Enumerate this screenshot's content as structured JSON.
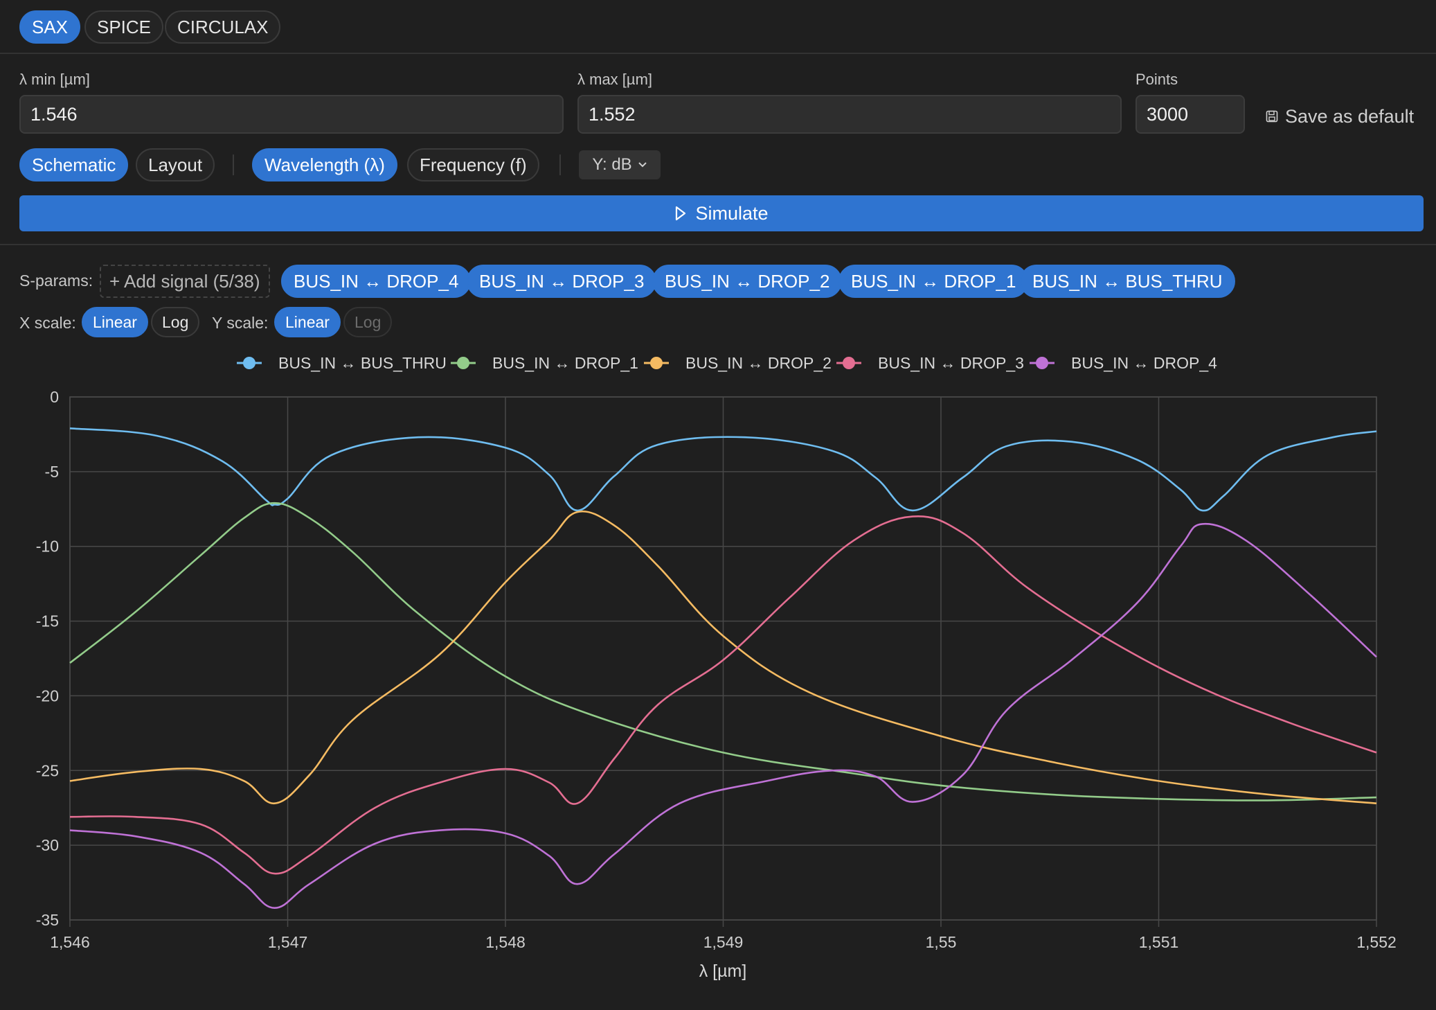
{
  "tabs": [
    {
      "label": "SAX",
      "active": true
    },
    {
      "label": "SPICE",
      "active": false
    },
    {
      "label": "CIRCULAX",
      "active": false
    }
  ],
  "sweep": {
    "lambda_min_label": "λ min [µm]",
    "lambda_min_value": "1.546",
    "lambda_max_label": "λ max [µm]",
    "lambda_max_value": "1.552",
    "points_label": "Points",
    "points_value": "3000",
    "save_default": "Save as default"
  },
  "view_toggle": {
    "schematic": "Schematic",
    "layout": "Layout",
    "active": "Schematic"
  },
  "domain_toggle": {
    "wavelength": "Wavelength (λ)",
    "frequency": "Frequency (f)",
    "active": "Wavelength (λ)"
  },
  "y_mode": "Y: dB",
  "simulate_label": "Simulate",
  "sparams": {
    "label": "S-params:",
    "add_signal": "+ Add signal (5/38)",
    "chips": [
      "BUS_IN ↔ DROP_4",
      "BUS_IN ↔ DROP_3",
      "BUS_IN ↔ DROP_2",
      "BUS_IN ↔ DROP_1",
      "BUS_IN ↔ BUS_THRU"
    ]
  },
  "scales": {
    "x_label": "X scale:",
    "y_label": "Y scale:",
    "linear": "Linear",
    "log": "Log",
    "x_active": "Linear",
    "y_active": "Linear",
    "y_log_disabled": true
  },
  "colors": {
    "accent": "#2f74d0",
    "bus_thru": "#6fbdf0",
    "drop_1": "#93cc8a",
    "drop_2": "#f5bb62",
    "drop_3": "#e46e92",
    "drop_4": "#bf72d6"
  },
  "chart_data": {
    "type": "line",
    "xlabel": "λ [µm]",
    "ylabel": "",
    "xlim": [
      1.546,
      1.552
    ],
    "ylim": [
      -35,
      0
    ],
    "x_ticks": [
      "1,546",
      "1,547",
      "1,548",
      "1,549",
      "1,55",
      "1,551",
      "1,552"
    ],
    "y_ticks": [
      "0",
      "-5",
      "-10",
      "-15",
      "-20",
      "-25",
      "-30",
      "-35"
    ],
    "grid": true,
    "legend_position": "top-center",
    "resonances": [
      1.54694,
      1.54833,
      1.54987,
      1.5512
    ],
    "series": [
      {
        "name": "BUS_IN ↔ BUS_THRU",
        "color": "#6fbdf0",
        "points": [
          [
            1.546,
            -2.1
          ],
          [
            1.5464,
            -2.6
          ],
          [
            1.5467,
            -4.3
          ],
          [
            1.5469,
            -6.9
          ],
          [
            1.54694,
            -7.2
          ],
          [
            1.547,
            -6.8
          ],
          [
            1.5472,
            -3.9
          ],
          [
            1.5476,
            -2.7
          ],
          [
            1.548,
            -3.4
          ],
          [
            1.5482,
            -5.2
          ],
          [
            1.54833,
            -7.6
          ],
          [
            1.5485,
            -5.3
          ],
          [
            1.5487,
            -3.2
          ],
          [
            1.5491,
            -2.7
          ],
          [
            1.5495,
            -3.6
          ],
          [
            1.5497,
            -5.4
          ],
          [
            1.54987,
            -7.6
          ],
          [
            1.5501,
            -5.4
          ],
          [
            1.5503,
            -3.3
          ],
          [
            1.5506,
            -3.0
          ],
          [
            1.5509,
            -4.2
          ],
          [
            1.5511,
            -6.2
          ],
          [
            1.5512,
            -7.6
          ],
          [
            1.5513,
            -6.6
          ],
          [
            1.5515,
            -3.9
          ],
          [
            1.5518,
            -2.7
          ],
          [
            1.552,
            -2.3
          ]
        ]
      },
      {
        "name": "BUS_IN ↔ DROP_1",
        "color": "#93cc8a",
        "points": [
          [
            1.546,
            -17.8
          ],
          [
            1.5463,
            -14.4
          ],
          [
            1.5466,
            -10.6
          ],
          [
            1.5468,
            -8.1
          ],
          [
            1.54694,
            -7.1
          ],
          [
            1.5471,
            -8.1
          ],
          [
            1.5473,
            -10.4
          ],
          [
            1.5476,
            -14.5
          ],
          [
            1.548,
            -18.7
          ],
          [
            1.5484,
            -21.3
          ],
          [
            1.549,
            -23.8
          ],
          [
            1.5496,
            -25.2
          ],
          [
            1.55,
            -26.0
          ],
          [
            1.5505,
            -26.6
          ],
          [
            1.551,
            -26.9
          ],
          [
            1.5515,
            -27.0
          ],
          [
            1.552,
            -26.8
          ]
        ]
      },
      {
        "name": "BUS_IN ↔ DROP_2",
        "color": "#f5bb62",
        "points": [
          [
            1.546,
            -25.7
          ],
          [
            1.5463,
            -25.1
          ],
          [
            1.5466,
            -24.9
          ],
          [
            1.5468,
            -25.7
          ],
          [
            1.54694,
            -27.2
          ],
          [
            1.5471,
            -25.3
          ],
          [
            1.5473,
            -21.6
          ],
          [
            1.5477,
            -17.2
          ],
          [
            1.548,
            -12.4
          ],
          [
            1.5482,
            -9.6
          ],
          [
            1.54833,
            -7.7
          ],
          [
            1.5485,
            -8.6
          ],
          [
            1.5487,
            -11.3
          ],
          [
            1.549,
            -16.0
          ],
          [
            1.5494,
            -19.8
          ],
          [
            1.55,
            -22.7
          ],
          [
            1.5505,
            -24.4
          ],
          [
            1.551,
            -25.7
          ],
          [
            1.5515,
            -26.6
          ],
          [
            1.552,
            -27.2
          ]
        ]
      },
      {
        "name": "BUS_IN ↔ DROP_3",
        "color": "#e46e92",
        "points": [
          [
            1.546,
            -28.1
          ],
          [
            1.5463,
            -28.1
          ],
          [
            1.5466,
            -28.6
          ],
          [
            1.5468,
            -30.5
          ],
          [
            1.54694,
            -31.9
          ],
          [
            1.5471,
            -30.7
          ],
          [
            1.5474,
            -27.5
          ],
          [
            1.5477,
            -25.8
          ],
          [
            1.548,
            -24.9
          ],
          [
            1.5482,
            -25.8
          ],
          [
            1.54833,
            -27.2
          ],
          [
            1.5485,
            -24.2
          ],
          [
            1.5487,
            -20.6
          ],
          [
            1.549,
            -17.6
          ],
          [
            1.5493,
            -13.5
          ],
          [
            1.5496,
            -9.6
          ],
          [
            1.54987,
            -8.0
          ],
          [
            1.5501,
            -9.1
          ],
          [
            1.5504,
            -12.8
          ],
          [
            1.5508,
            -16.5
          ],
          [
            1.5512,
            -19.5
          ],
          [
            1.5516,
            -21.8
          ],
          [
            1.552,
            -23.8
          ]
        ]
      },
      {
        "name": "BUS_IN ↔ DROP_4",
        "color": "#bf72d6",
        "points": [
          [
            1.546,
            -29.0
          ],
          [
            1.5463,
            -29.4
          ],
          [
            1.5466,
            -30.5
          ],
          [
            1.5468,
            -32.6
          ],
          [
            1.54694,
            -34.2
          ],
          [
            1.5471,
            -32.6
          ],
          [
            1.5474,
            -29.9
          ],
          [
            1.5477,
            -29.0
          ],
          [
            1.548,
            -29.2
          ],
          [
            1.5482,
            -30.7
          ],
          [
            1.54833,
            -32.6
          ],
          [
            1.5485,
            -30.6
          ],
          [
            1.5488,
            -27.2
          ],
          [
            1.5492,
            -25.7
          ],
          [
            1.5495,
            -25.0
          ],
          [
            1.5497,
            -25.4
          ],
          [
            1.54987,
            -27.1
          ],
          [
            1.5501,
            -25.3
          ],
          [
            1.5503,
            -21.0
          ],
          [
            1.5506,
            -17.6
          ],
          [
            1.5509,
            -13.8
          ],
          [
            1.5511,
            -10.0
          ],
          [
            1.5512,
            -8.5
          ],
          [
            1.5514,
            -9.6
          ],
          [
            1.5517,
            -13.3
          ],
          [
            1.552,
            -17.4
          ]
        ]
      }
    ]
  }
}
